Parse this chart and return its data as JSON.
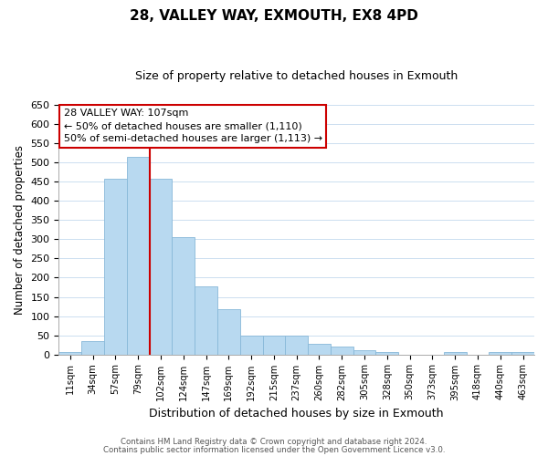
{
  "title": "28, VALLEY WAY, EXMOUTH, EX8 4PD",
  "subtitle": "Size of property relative to detached houses in Exmouth",
  "xlabel": "Distribution of detached houses by size in Exmouth",
  "ylabel": "Number of detached properties",
  "bar_labels": [
    "11sqm",
    "34sqm",
    "57sqm",
    "79sqm",
    "102sqm",
    "124sqm",
    "147sqm",
    "169sqm",
    "192sqm",
    "215sqm",
    "237sqm",
    "260sqm",
    "282sqm",
    "305sqm",
    "328sqm",
    "350sqm",
    "373sqm",
    "395sqm",
    "418sqm",
    "440sqm",
    "463sqm"
  ],
  "bar_values": [
    5,
    35,
    458,
    515,
    458,
    305,
    178,
    117,
    50,
    50,
    50,
    27,
    20,
    12,
    7,
    0,
    0,
    5,
    0,
    5,
    7
  ],
  "bar_color": "#b8d9f0",
  "bar_edge_color": "#88b8d8",
  "vline_x_index": 3,
  "vline_color": "#cc0000",
  "ylim": [
    0,
    650
  ],
  "yticks": [
    0,
    50,
    100,
    150,
    200,
    250,
    300,
    350,
    400,
    450,
    500,
    550,
    600,
    650
  ],
  "annotation_title": "28 VALLEY WAY: 107sqm",
  "annotation_line1": "← 50% of detached houses are smaller (1,110)",
  "annotation_line2": "50% of semi-detached houses are larger (1,113) →",
  "annotation_box_color": "#ffffff",
  "annotation_box_edge": "#cc0000",
  "footer_line1": "Contains HM Land Registry data © Crown copyright and database right 2024.",
  "footer_line2": "Contains public sector information licensed under the Open Government Licence v3.0.",
  "background_color": "#ffffff",
  "grid_color": "#ccdff0"
}
